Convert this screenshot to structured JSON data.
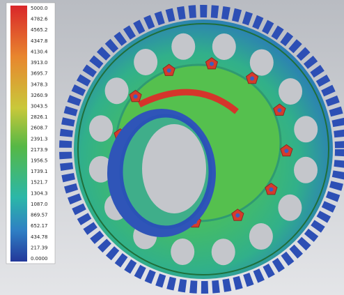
{
  "legend": {
    "labels": [
      "5000.0",
      "4782.6",
      "4565.2",
      "4347.8",
      "4130.4",
      "3913.0",
      "3695.7",
      "3478.3",
      "3260.9",
      "3043.5",
      "2826.1",
      "2608.7",
      "2391.3",
      "2173.9",
      "1956.5",
      "1739.1",
      "1521.7",
      "1304.3",
      "1087.0",
      "869.57",
      "652.17",
      "434.78",
      "217.39",
      "0.0000"
    ]
  }
}
